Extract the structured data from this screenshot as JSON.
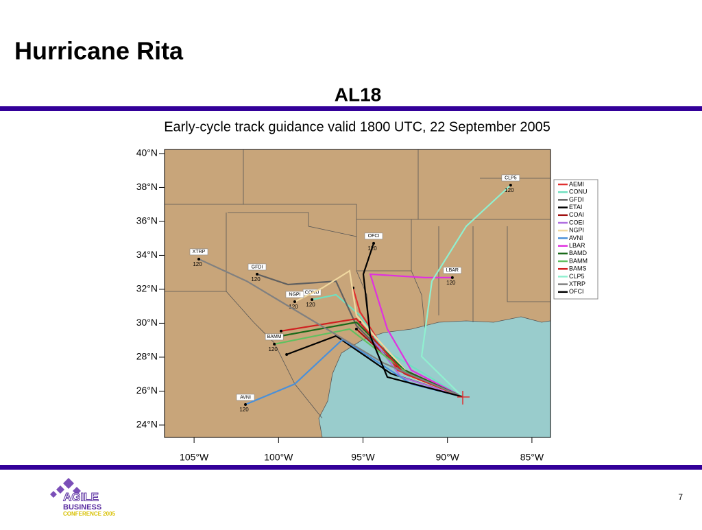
{
  "slide": {
    "title": "Hurricane Rita",
    "page_number": 7,
    "logo": {
      "line1": "AGILE",
      "line2": "BUSINESS",
      "line3": "CONFERENCE 2005"
    }
  },
  "chart_data": {
    "type": "track",
    "title": "AL18",
    "subtitle": "Early-cycle track guidance valid 1800 UTC, 22 September 2005",
    "xlim": [
      -106.75,
      -83.9
    ],
    "ylim": [
      23.27,
      40.24
    ],
    "xticks": [
      {
        "value": -105,
        "label": "105°W"
      },
      {
        "value": -100,
        "label": "100°W"
      },
      {
        "value": -95,
        "label": "95°W"
      },
      {
        "value": -90,
        "label": "90°W"
      },
      {
        "value": -85,
        "label": "85°W"
      }
    ],
    "yticks": [
      {
        "value": 24,
        "label": "24°N"
      },
      {
        "value": 26,
        "label": "26°N"
      },
      {
        "value": 28,
        "label": "28°N"
      },
      {
        "value": 30,
        "label": "30°N"
      },
      {
        "value": 32,
        "label": "32°N"
      },
      {
        "value": 34,
        "label": "34°N"
      },
      {
        "value": 36,
        "label": "36°N"
      },
      {
        "value": 38,
        "label": "38°N"
      },
      {
        "value": 40,
        "label": "40°N"
      }
    ],
    "legend": "right",
    "series": [
      {
        "name": "AEMI",
        "color": "#e03030",
        "x": [
          -89.1,
          -92.95,
          -95.18,
          -95.59
        ],
        "y": [
          25.66,
          27.23,
          30.67,
          32.08
        ]
      },
      {
        "name": "CONU",
        "color": "#70e0c0",
        "x": [
          -89.1,
          -93.76,
          -95.18,
          -96.6,
          -98.02
        ],
        "y": [
          25.66,
          28.44,
          30.46,
          31.68,
          31.39
        ],
        "end_hour": 120
      },
      {
        "name": "GFDI",
        "color": "#606060",
        "x": [
          -89.1,
          -92.55,
          -95.39,
          -96.6,
          -99.44,
          -101.27
        ],
        "y": [
          25.66,
          27.03,
          29.86,
          32.48,
          32.28,
          32.89
        ],
        "end_hour": 120
      },
      {
        "name": "ETAI",
        "color": "#000000",
        "x": [
          -89.1,
          -93.35,
          -96.6,
          -99.52
        ],
        "y": [
          25.66,
          27.03,
          29.25,
          28.16
        ]
      },
      {
        "name": "COAI",
        "color": "#a01010",
        "x": [
          -89.1,
          -92.95,
          -95.39
        ],
        "y": [
          25.66,
          27.43,
          29.66
        ]
      },
      {
        "name": "COEI",
        "color": "#b070e0",
        "x": [
          -89.1,
          -92.75,
          -95.18
        ],
        "y": [
          25.66,
          26.83,
          30.06
        ]
      },
      {
        "name": "NGPI",
        "color": "#f0d8a0",
        "x": [
          -89.1,
          -92.14,
          -95.39,
          -95.79,
          -97.41,
          -99.04
        ],
        "y": [
          25.66,
          26.83,
          30.46,
          33.09,
          32.08,
          31.27
        ],
        "end_hour": 120
      },
      {
        "name": "AVNI",
        "color": "#4a90d9",
        "x": [
          -89.1,
          -92.14,
          -96.2,
          -99.04,
          -101.96
        ],
        "y": [
          25.66,
          26.42,
          29.05,
          26.42,
          25.21
        ],
        "end_hour": 120
      },
      {
        "name": "LBAR",
        "color": "#e030e0",
        "x": [
          -89.1,
          -92.14,
          -93.56,
          -94.57,
          -91.33,
          -89.71
        ],
        "y": [
          25.66,
          27.23,
          29.66,
          32.89,
          32.69,
          32.69
        ],
        "end_hour": 120
      },
      {
        "name": "BAMD",
        "color": "#1a6a1a",
        "x": [
          -89.1,
          -92.55,
          -95.39,
          -99.85
        ],
        "y": [
          25.66,
          27.23,
          30.06,
          29.25
        ]
      },
      {
        "name": "BAMM",
        "color": "#60c060",
        "x": [
          -89.1,
          -92.34,
          -95.79,
          -100.25
        ],
        "y": [
          25.66,
          27.03,
          29.66,
          28.77
        ],
        "end_hour": 120
      },
      {
        "name": "BAMS",
        "color": "#d02020",
        "x": [
          -89.1,
          -92.55,
          -95.39,
          -99.85
        ],
        "y": [
          25.66,
          27.03,
          30.26,
          29.54
        ]
      },
      {
        "name": "CLP5",
        "color": "#90f0d0",
        "x": [
          -89.1,
          -91.53,
          -90.92,
          -88.89,
          -86.26
        ],
        "y": [
          25.66,
          28.04,
          32.48,
          35.72,
          38.14
        ],
        "end_hour": 120
      },
      {
        "name": "XTRP",
        "color": "#808080",
        "x": [
          -89.1,
          -93.76,
          -97.82,
          -101.88,
          -104.72
        ],
        "y": [
          25.66,
          27.64,
          30.06,
          32.48,
          33.78
        ],
        "end_hour": 120
      },
      {
        "name": "OFCI",
        "color": "#000000",
        "x": [
          -89.1,
          -93.56,
          -94.57,
          -94.98,
          -94.37
        ],
        "y": [
          25.66,
          26.83,
          29.25,
          32.89,
          34.71
        ],
        "end_hour": 120
      }
    ]
  }
}
